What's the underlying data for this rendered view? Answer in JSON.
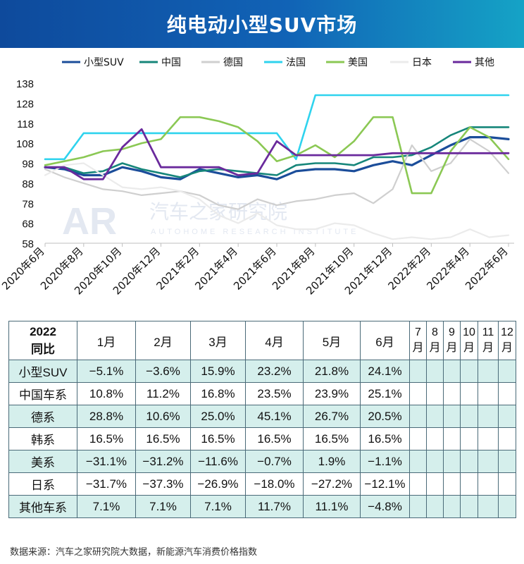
{
  "header": {
    "title": "纯电动小型SUV市场"
  },
  "watermark": {
    "logo": "AR",
    "cn": "汽车之家研究院",
    "en": "AUTOHOME RESEARCH INSTITUTE"
  },
  "chart_data": {
    "type": "line",
    "title": "纯电动小型SUV市场",
    "x": [
      "2020年6月",
      "2020年7月",
      "2020年8月",
      "2020年9月",
      "2020年10月",
      "2020年11月",
      "2020年12月",
      "2021年1月",
      "2021年2月",
      "2021年3月",
      "2021年4月",
      "2021年5月",
      "2021年6月",
      "2021年7月",
      "2021年8月",
      "2021年9月",
      "2021年10月",
      "2021年11月",
      "2021年12月",
      "2022年1月",
      "2022年2月",
      "2022年3月",
      "2022年4月",
      "2022年5月",
      "2022年6月"
    ],
    "x_tick_labels": [
      "2020年6月",
      "2020年8月",
      "2020年10月",
      "2020年12月",
      "2021年2月",
      "2021年4月",
      "2021年6月",
      "2021年8月",
      "2021年10月",
      "2021年12月",
      "2022年2月",
      "2022年4月",
      "2022年6月"
    ],
    "y_ticks": [
      58,
      68,
      78,
      88,
      98,
      108,
      118,
      128,
      138
    ],
    "ylim": [
      58,
      138
    ],
    "legend_position": "top",
    "series": [
      {
        "name": "小型SUV",
        "color": "#1b4d9a",
        "width": 3.2,
        "values": [
          96,
          95,
          92,
          92,
          96,
          94,
          91,
          90,
          95,
          93,
          91,
          92,
          90,
          94,
          95,
          95,
          94,
          97,
          99,
          97,
          102,
          107,
          111,
          111,
          110
        ]
      },
      {
        "name": "中国",
        "color": "#16867a",
        "width": 2.6,
        "values": [
          96,
          96,
          93,
          94,
          98,
          95,
          93,
          91,
          94,
          95,
          94,
          93,
          92,
          97,
          98,
          98,
          97,
          101,
          101,
          102,
          106,
          112,
          116,
          116,
          116
        ]
      },
      {
        "name": "德国",
        "color": "#cfcfcf",
        "width": 2.2,
        "values": [
          95,
          91,
          88,
          85,
          84,
          82,
          83,
          84,
          82,
          77,
          75,
          80,
          77,
          79,
          80,
          82,
          83,
          78,
          85,
          107,
          94,
          98,
          110,
          104,
          93
        ]
      },
      {
        "name": "法国",
        "color": "#2fd3ee",
        "width": 2.6,
        "values": [
          100,
          100,
          113,
          113,
          113,
          113,
          113,
          113,
          113,
          113,
          113,
          113,
          113,
          100,
          132,
          132,
          132,
          132,
          132,
          132,
          132,
          132,
          132,
          132,
          132
        ]
      },
      {
        "name": "美国",
        "color": "#8bc854",
        "width": 2.6,
        "values": [
          97,
          99,
          101,
          104,
          105,
          108,
          110,
          121,
          121,
          119,
          116,
          109,
          99,
          102,
          107,
          101,
          109,
          121,
          121,
          83,
          83,
          104,
          116,
          111,
          100
        ]
      },
      {
        "name": "日本",
        "color": "#ebebeb",
        "width": 2.2,
        "values": [
          92,
          97,
          98,
          92,
          86,
          85,
          86,
          84,
          80,
          72,
          68,
          73,
          67,
          65,
          65,
          68,
          67,
          63,
          60,
          61,
          60,
          61,
          65,
          61,
          62
        ]
      },
      {
        "name": "其他",
        "color": "#6a2a9c",
        "width": 2.8,
        "values": [
          96,
          96,
          90,
          90,
          106,
          115,
          96,
          96,
          96,
          96,
          92,
          93,
          109,
          102,
          102,
          102,
          102,
          102,
          103,
          103,
          103,
          103,
          103,
          103,
          103
        ]
      }
    ]
  },
  "table": {
    "corner": [
      "2022",
      "同比"
    ],
    "months": [
      "1月",
      "2月",
      "3月",
      "4月",
      "5月",
      "6月"
    ],
    "later_months": [
      [
        "7",
        "月"
      ],
      [
        "8",
        "月"
      ],
      [
        "9",
        "月"
      ],
      [
        "10",
        "月"
      ],
      [
        "11",
        "月"
      ],
      [
        "12",
        "月"
      ]
    ],
    "rows": [
      {
        "label": "小型SUV",
        "values": [
          "−5.1%",
          "−3.6%",
          "15.9%",
          "23.2%",
          "21.8%",
          "24.1%"
        ]
      },
      {
        "label": "中国车系",
        "values": [
          "10.8%",
          "11.2%",
          "16.8%",
          "23.5%",
          "23.9%",
          "25.1%"
        ]
      },
      {
        "label": "德系",
        "values": [
          "28.8%",
          "10.6%",
          "25.0%",
          "45.1%",
          "26.7%",
          "20.5%"
        ]
      },
      {
        "label": "韩系",
        "values": [
          "16.5%",
          "16.5%",
          "16.5%",
          "16.5%",
          "16.5%",
          "16.5%"
        ]
      },
      {
        "label": "美系",
        "values": [
          "−31.1%",
          "−31.2%",
          "−11.6%",
          "−0.7%",
          "1.9%",
          "−1.1%"
        ]
      },
      {
        "label": "日系",
        "values": [
          "−31.7%",
          "−37.3%",
          "−26.9%",
          "−18.0%",
          "−27.2%",
          "−12.1%"
        ]
      },
      {
        "label": "其他车系",
        "values": [
          "7.1%",
          "7.1%",
          "7.1%",
          "11.7%",
          "11.1%",
          "−4.8%"
        ]
      }
    ]
  },
  "footer": {
    "source": "数据来源：汽车之家研究院大数据，新能源汽车消费价格指数"
  }
}
